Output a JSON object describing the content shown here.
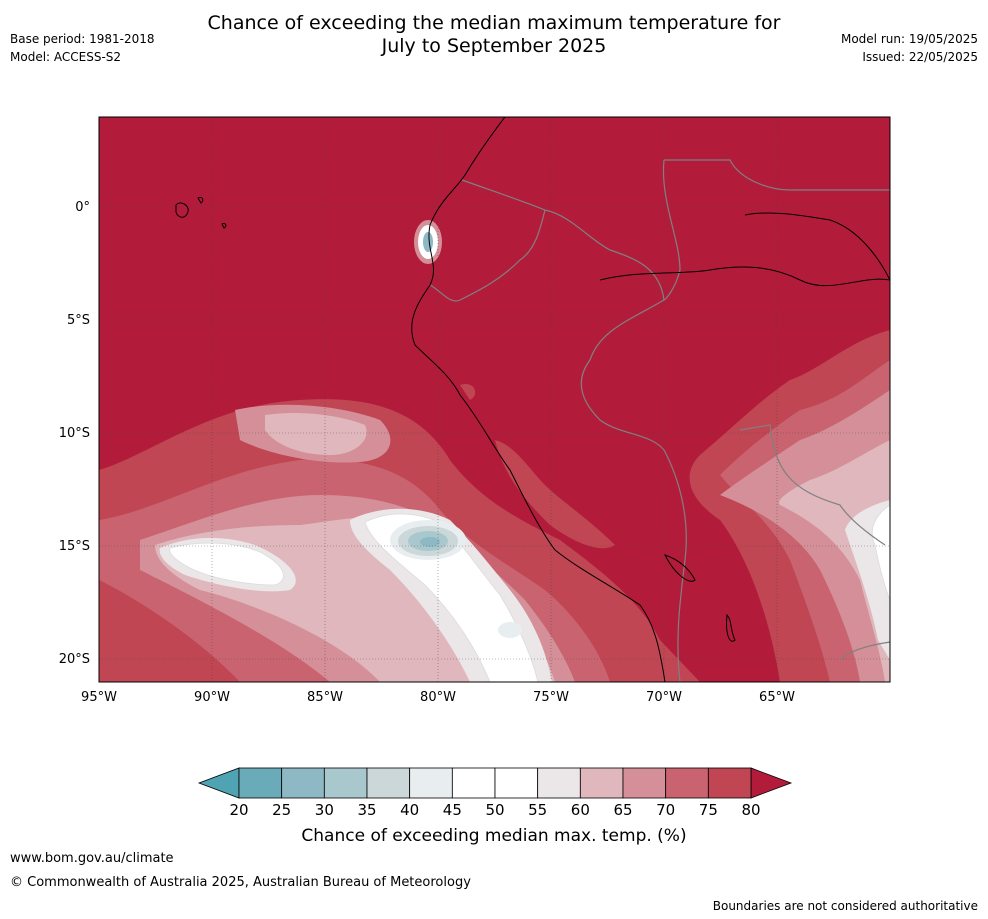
{
  "title": {
    "line1": "Chance of exceeding the median maximum temperature for",
    "line2": "July to September 2025"
  },
  "meta_left": {
    "base_period": "Base period: 1981-2018",
    "model": "Model: ACCESS-S2"
  },
  "meta_right": {
    "model_run": "Model run: 19/05/2025",
    "issued": "Issued: 22/05/2025"
  },
  "map": {
    "lat_labels": [
      "0°",
      "5°S",
      "10°S",
      "15°S",
      "20°S"
    ],
    "lon_labels": [
      "95°W",
      "90°W",
      "85°W",
      "80°W",
      "75°W",
      "70°W",
      "65°W"
    ],
    "background_color": "#b21c3a"
  },
  "colorbar": {
    "ticks": [
      "20",
      "25",
      "30",
      "35",
      "40",
      "45",
      "50",
      "55",
      "60",
      "65",
      "70",
      "75",
      "80"
    ],
    "colors": [
      "#6aabb9",
      "#8db8c4",
      "#a9c8ce",
      "#ccd7da",
      "#e8eef0",
      "#ffffff",
      "#ffffff",
      "#ebe6e7",
      "#dfb7bc",
      "#d48f98",
      "#c8636f",
      "#bf4652"
    ],
    "lower_extend_color": "#4fa3b2",
    "upper_extend_color": "#b21c3a",
    "label": "Chance of exceeding median max. temp. (%)"
  },
  "footer": {
    "site": "www.bom.gov.au/climate",
    "copyright": "© Commonwealth of Australia 2025, Australian Bureau of Meteorology",
    "disclaimer": "Boundaries are not considered authoritative"
  }
}
